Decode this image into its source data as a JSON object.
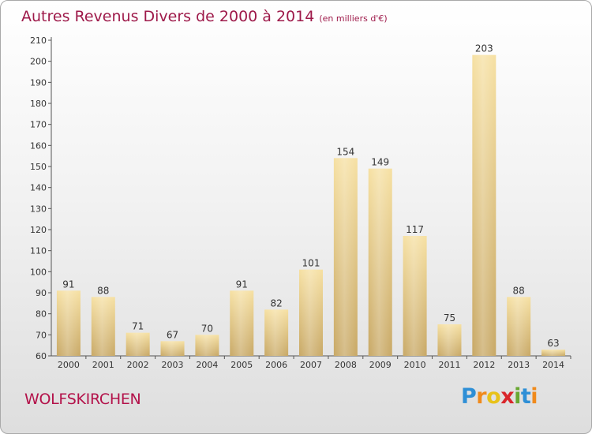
{
  "title": "Autres Revenus Divers de 2000 à 2014",
  "unit": "(en milliers d'€)",
  "commune": "WOLFSKIRCHEN",
  "logo": {
    "text": "Proxiti",
    "letters": [
      {
        "ch": "P",
        "color": "#2e8fd6"
      },
      {
        "ch": "r",
        "color": "#f08a1c"
      },
      {
        "ch": "o",
        "color": "#e8c21a"
      },
      {
        "ch": "x",
        "color": "#d9262b"
      },
      {
        "ch": "i",
        "color": "#69a832"
      },
      {
        "ch": "t",
        "color": "#2e8fd6"
      },
      {
        "ch": "i",
        "color": "#f08a1c"
      }
    ]
  },
  "colors": {
    "title": "#9e1a4a",
    "commune": "#b3124a",
    "bar_top": "#f6e0a2",
    "bar_bottom": "#c8a865",
    "axis": "#555555"
  },
  "chart_data": {
    "type": "bar",
    "title": "Autres Revenus Divers de 2000 à 2014",
    "unit": "(en milliers d'€)",
    "categories": [
      "2000",
      "2001",
      "2002",
      "2003",
      "2004",
      "2005",
      "2006",
      "2007",
      "2008",
      "2009",
      "2010",
      "2011",
      "2012",
      "2013",
      "2014"
    ],
    "values": [
      91,
      88,
      71,
      67,
      70,
      91,
      82,
      101,
      154,
      149,
      117,
      75,
      203,
      88,
      63
    ],
    "ylim": [
      60,
      210
    ],
    "yticks": [
      60,
      70,
      80,
      90,
      100,
      110,
      120,
      130,
      140,
      150,
      160,
      170,
      180,
      190,
      200,
      210
    ],
    "grid": false,
    "legend": "none"
  }
}
